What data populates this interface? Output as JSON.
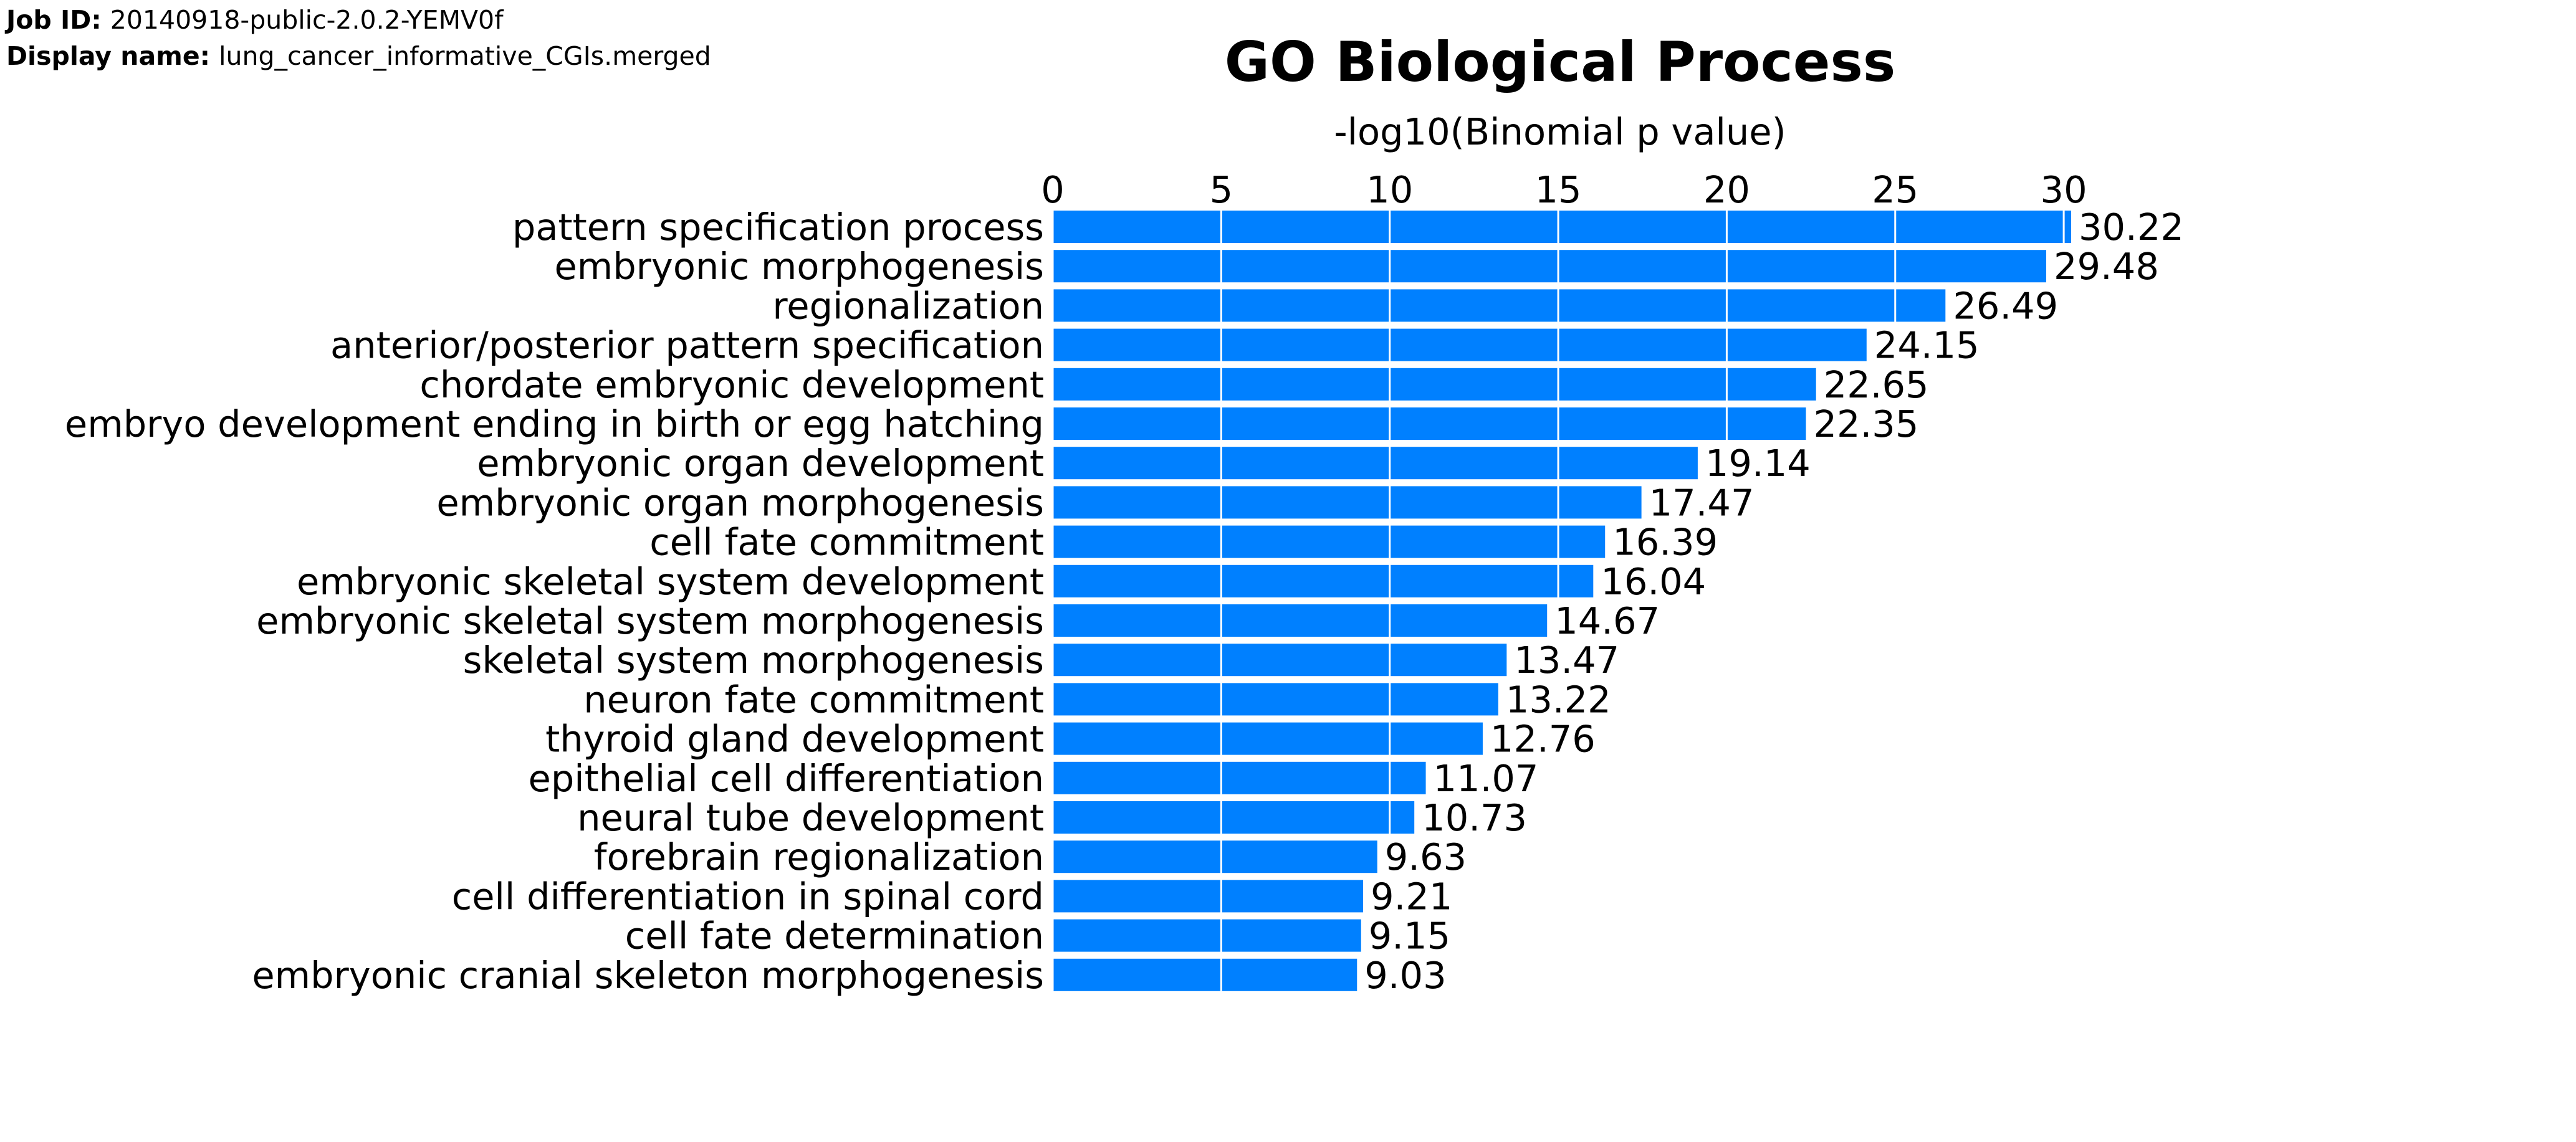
{
  "header": {
    "job_id_label": "Job ID:",
    "job_id": "20140918-public-2.0.2-YEMV0f",
    "display_name_label": "Display name:",
    "display_name": "lung_cancer_informative_CGIs.merged"
  },
  "colors": {
    "bar": "#0080ff",
    "grid": "#ffffff",
    "text": "#000000"
  },
  "chart_data": {
    "type": "bar",
    "orientation": "horizontal",
    "title": "GO Biological Process",
    "xlabel": "-log10(Binomial p value)",
    "ylabel": "",
    "xlim": [
      0,
      30
    ],
    "x_ticks": [
      0,
      5,
      10,
      15,
      20,
      25,
      30
    ],
    "x_axis_position": "top",
    "grid": true,
    "categories": [
      "pattern specification process",
      "embryonic morphogenesis",
      "regionalization",
      "anterior/posterior pattern specification",
      "chordate embryonic development",
      "embryo development ending in birth or egg hatching",
      "embryonic organ development",
      "embryonic organ morphogenesis",
      "cell fate commitment",
      "embryonic skeletal system development",
      "embryonic skeletal system morphogenesis",
      "skeletal system morphogenesis",
      "neuron fate commitment",
      "thyroid gland development",
      "epithelial cell differentiation",
      "neural tube development",
      "forebrain regionalization",
      "cell differentiation in spinal cord",
      "cell fate determination",
      "embryonic cranial skeleton morphogenesis"
    ],
    "values": [
      30.22,
      29.48,
      26.49,
      24.15,
      22.65,
      22.35,
      19.14,
      17.47,
      16.39,
      16.04,
      14.67,
      13.47,
      13.22,
      12.76,
      11.07,
      10.73,
      9.63,
      9.21,
      9.15,
      9.03
    ],
    "value_labels": [
      "30.22",
      "29.48",
      "26.49",
      "24.15",
      "22.65",
      "22.35",
      "19.14",
      "17.47",
      "16.39",
      "16.04",
      "14.67",
      "13.47",
      "13.22",
      "12.76",
      "11.07",
      "10.73",
      "9.63",
      "9.21",
      "9.15",
      "9.03"
    ]
  }
}
